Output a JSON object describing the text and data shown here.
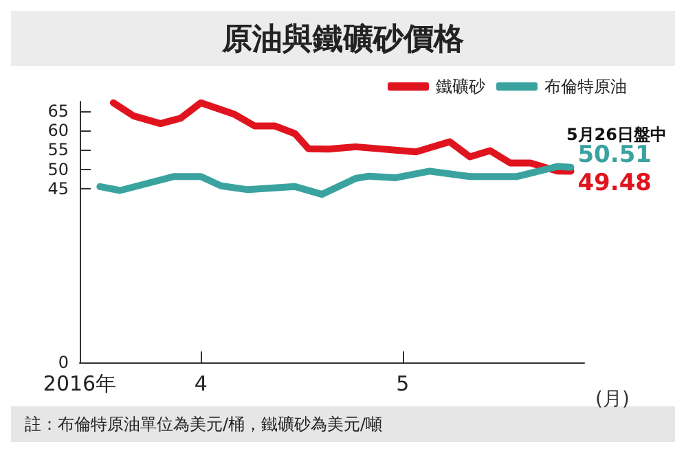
{
  "chart_data": {
    "type": "line",
    "title": "原油與鐵礦砂價格",
    "xlabel": "(月)",
    "xlim": [
      "2016-03-14",
      "2016-05-28"
    ],
    "xticks": [
      {
        "value": "2016-03-14",
        "label": "2016年"
      },
      {
        "value": "2016-04-01",
        "label": "4"
      },
      {
        "value": "2016-05-01",
        "label": "5"
      }
    ],
    "ylim": [
      0,
      67.5
    ],
    "yticks": [
      0,
      45,
      50,
      55,
      60,
      65
    ],
    "series": [
      {
        "name": "鐵礦砂",
        "color": "#e0141e",
        "x": [
          "2016-03-19",
          "2016-03-22",
          "2016-03-26",
          "2016-03-29",
          "2016-04-01",
          "2016-04-06",
          "2016-04-09",
          "2016-04-12",
          "2016-04-15",
          "2016-04-17",
          "2016-04-20",
          "2016-04-24",
          "2016-05-03",
          "2016-05-08",
          "2016-05-11",
          "2016-05-14",
          "2016-05-17",
          "2016-05-20",
          "2016-05-24",
          "2016-05-26"
        ],
        "values": [
          67.2,
          63.8,
          61.8,
          63.2,
          67.2,
          64.2,
          61.2,
          61.2,
          59.2,
          55.3,
          55.2,
          55.8,
          54.5,
          57.1,
          53.2,
          54.8,
          51.6,
          51.6,
          49.5,
          49.48
        ],
        "value_labels": [
          null,
          null,
          null,
          null,
          null,
          null,
          null,
          null,
          null,
          null,
          null,
          null,
          null,
          null,
          null,
          null,
          null,
          null,
          null,
          "49.48"
        ]
      },
      {
        "name": "布倫特原油",
        "color": "#3aa3a0",
        "x": [
          "2016-03-17",
          "2016-03-20",
          "2016-03-28",
          "2016-04-01",
          "2016-04-04",
          "2016-04-08",
          "2016-04-15",
          "2016-04-19",
          "2016-04-24",
          "2016-04-26",
          "2016-04-30",
          "2016-05-05",
          "2016-05-11",
          "2016-05-18",
          "2016-05-24",
          "2016-05-26"
        ],
        "values": [
          45.5,
          44.5,
          48.1,
          48.1,
          45.7,
          44.7,
          45.5,
          43.5,
          47.6,
          48.2,
          47.8,
          49.5,
          48.1,
          48.1,
          50.7,
          50.51
        ],
        "value_labels": [
          null,
          null,
          null,
          null,
          null,
          null,
          null,
          null,
          null,
          null,
          null,
          null,
          null,
          null,
          null,
          "50.51"
        ]
      }
    ],
    "annotations": [
      "5月26日盤中",
      "註：布倫特原油單位為美元/桶，鐵礦砂為美元/噸"
    ],
    "legend": "top right",
    "grid": false,
    "marker": "none",
    "line_style": "solid"
  }
}
